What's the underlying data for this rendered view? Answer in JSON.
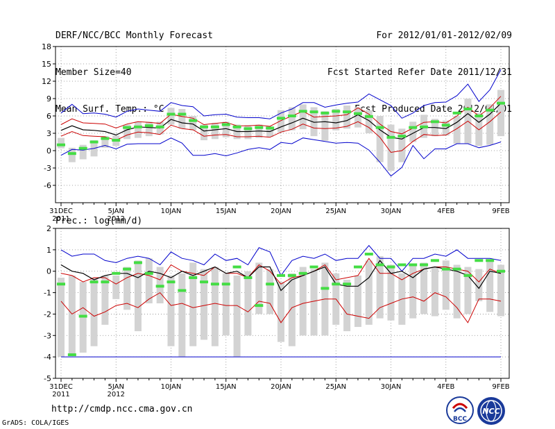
{
  "header": {
    "left": [
      "DERF/NCC/BCC Monthly Forecast",
      "Member Size=40",
      "Mean Surf. Temp.: °C"
    ],
    "right": [
      "For 2012/01/01-2012/02/09",
      "Fcst Started Refer Date 2011/12/31",
      "Fcst Produced Date 2012/01/01"
    ]
  },
  "footer": {
    "url": "http://cmdp.ncc.cma.gov.cn",
    "credit": "GrADS: COLA/IGES"
  },
  "logos": {
    "bcc": "BCC",
    "ncc": "NCC"
  },
  "colors": {
    "box": "#d3d3d3",
    "median": "#44dd44",
    "mean": "#000000",
    "envelope": "#cc0000",
    "extreme": "#0000cc"
  },
  "chart_data": [
    {
      "type": "line",
      "title": "Mean Surf. Temp.: °C",
      "ylim": [
        -9,
        18
      ],
      "yticks": [
        -6,
        -3,
        0,
        3,
        6,
        9,
        12,
        15,
        18
      ],
      "xticks": [
        {
          "day": 0,
          "l1": "31DEC",
          "l2": "2011"
        },
        {
          "day": 5,
          "l1": "5JAN",
          "l2": "2012"
        },
        {
          "day": 10,
          "l1": "10JAN",
          "l2": ""
        },
        {
          "day": 15,
          "l1": "15JAN",
          "l2": ""
        },
        {
          "day": 20,
          "l1": "20JAN",
          "l2": ""
        },
        {
          "day": 25,
          "l1": "25JAN",
          "l2": ""
        },
        {
          "day": 30,
          "l1": "30JAN",
          "l2": ""
        },
        {
          "day": 35,
          "l1": "4FEB",
          "l2": ""
        },
        {
          "day": 40,
          "l1": "9FEB",
          "l2": ""
        }
      ],
      "max": [
        6.5,
        8.0,
        6.4,
        6.5,
        6.3,
        5.8,
        6.8,
        7.2,
        7.0,
        6.8,
        8.3,
        7.8,
        7.6,
        6.0,
        6.2,
        6.3,
        5.8,
        5.7,
        5.7,
        5.5,
        6.5,
        7.2,
        8.3,
        8.3,
        7.5,
        7.9,
        8.2,
        8.4,
        9.8,
        8.8,
        7.8,
        5.6,
        6.5,
        7.8,
        8.3,
        8.4,
        9.5,
        11.5,
        8.5,
        10.5,
        14.0
      ],
      "upper": [
        4.5,
        5.5,
        4.8,
        4.7,
        4.6,
        3.9,
        4.6,
        5.0,
        4.9,
        4.7,
        6.3,
        5.9,
        5.6,
        4.5,
        4.7,
        4.9,
        4.3,
        4.3,
        4.4,
        4.2,
        5.2,
        6.0,
        6.8,
        5.8,
        5.9,
        6.0,
        6.2,
        7.4,
        6.3,
        4.6,
        3.3,
        2.9,
        3.9,
        4.9,
        5.0,
        4.8,
        6.0,
        7.5,
        6.0,
        7.4,
        9.4
      ],
      "mean": [
        3.5,
        4.3,
        3.6,
        3.5,
        3.3,
        2.7,
        3.6,
        4.1,
        4.0,
        3.9,
        5.4,
        4.8,
        4.6,
        3.4,
        3.6,
        3.8,
        3.3,
        3.3,
        3.4,
        3.3,
        4.1,
        4.8,
        5.6,
        4.9,
        5.0,
        4.8,
        5.2,
        6.2,
        5.2,
        3.6,
        2.3,
        2.0,
        3.0,
        4.0,
        4.0,
        3.8,
        4.9,
        6.4,
        4.9,
        6.3,
        8.2
      ],
      "lower": [
        2.5,
        3.3,
        2.6,
        2.5,
        2.4,
        1.8,
        2.7,
        3.2,
        3.1,
        2.8,
        4.4,
        3.8,
        3.6,
        2.5,
        2.7,
        2.8,
        2.4,
        2.4,
        2.5,
        2.3,
        3.2,
        3.7,
        4.6,
        3.9,
        3.8,
        3.9,
        4.2,
        5.0,
        4.0,
        2.3,
        -0.3,
        0.0,
        1.6,
        2.8,
        2.6,
        2.7,
        3.8,
        5.1,
        3.6,
        5.0,
        6.7
      ],
      "min": [
        -0.8,
        0.2,
        0.1,
        0.4,
        0.9,
        0.3,
        1.1,
        1.2,
        1.2,
        1.2,
        2.2,
        1.3,
        -0.8,
        -0.8,
        -0.5,
        -0.9,
        -0.4,
        0.2,
        0.5,
        0.2,
        1.4,
        1.2,
        2.2,
        1.9,
        1.6,
        1.3,
        1.4,
        1.3,
        0.1,
        -2.0,
        -4.4,
        -2.9,
        0.9,
        -1.4,
        0.3,
        0.3,
        1.2,
        1.2,
        0.5,
        0.9,
        1.5
      ],
      "q1": [
        0.4,
        -2.0,
        -1.5,
        -1.0,
        0.5,
        0.8,
        2.0,
        2.2,
        2.5,
        2.8,
        4.5,
        3.8,
        3.5,
        1.8,
        2.0,
        2.3,
        2.0,
        2.0,
        2.2,
        2.4,
        3.2,
        3.5,
        3.7,
        2.5,
        1.7,
        3.5,
        3.8,
        4.0,
        3.0,
        -2.0,
        -3.5,
        -2.0,
        1.5,
        2.2,
        2.5,
        2.6,
        1.2,
        1.2,
        0.8,
        1.0,
        2.5
      ],
      "q3": [
        2.2,
        0.5,
        1.0,
        1.8,
        2.5,
        2.6,
        4.5,
        5.0,
        5.0,
        5.0,
        7.4,
        7.2,
        6.0,
        4.5,
        4.8,
        5.0,
        4.5,
        4.4,
        4.5,
        4.2,
        7.0,
        7.5,
        8.0,
        7.5,
        6.8,
        7.2,
        7.8,
        7.5,
        7.0,
        6.0,
        4.5,
        3.8,
        5.0,
        6.2,
        5.5,
        5.2,
        6.0,
        9.0,
        6.5,
        8.0,
        10.5
      ],
      "median": [
        1.0,
        -0.5,
        0.4,
        1.5,
        2.1,
        1.8,
        4.0,
        4.1,
        4.3,
        4.1,
        6.3,
        6.3,
        5.2,
        4.1,
        4.1,
        4.5,
        4.1,
        3.8,
        4.0,
        3.9,
        5.6,
        6.0,
        6.8,
        6.7,
        6.5,
        6.8,
        6.7,
        6.4,
        5.9,
        4.0,
        2.3,
        2.5,
        4.0,
        4.1,
        5.0,
        4.4,
        6.5,
        7.2,
        6.0,
        7.0,
        8.2
      ]
    },
    {
      "type": "line",
      "title": "Prec.: log(mm/d)",
      "ylim": [
        -5,
        2
      ],
      "yticks": [
        -5,
        -4,
        -3,
        -2,
        -1,
        0,
        1,
        2
      ],
      "xticks": [
        {
          "day": 0,
          "l1": "31DEC",
          "l2": "2011"
        },
        {
          "day": 5,
          "l1": "5JAN",
          "l2": "2012"
        },
        {
          "day": 10,
          "l1": "10JAN",
          "l2": ""
        },
        {
          "day": 15,
          "l1": "15JAN",
          "l2": ""
        },
        {
          "day": 20,
          "l1": "20JAN",
          "l2": ""
        },
        {
          "day": 25,
          "l1": "25JAN",
          "l2": ""
        },
        {
          "day": 30,
          "l1": "30JAN",
          "l2": ""
        },
        {
          "day": 35,
          "l1": "4FEB",
          "l2": ""
        },
        {
          "day": 40,
          "l1": "9FEB",
          "l2": ""
        }
      ],
      "max": [
        1.0,
        0.7,
        0.8,
        0.8,
        0.5,
        0.4,
        0.6,
        0.7,
        0.6,
        0.3,
        0.9,
        0.6,
        0.5,
        0.3,
        0.8,
        0.5,
        0.6,
        0.3,
        1.1,
        0.9,
        -0.2,
        0.5,
        0.7,
        0.6,
        0.8,
        0.5,
        0.6,
        0.6,
        1.2,
        0.6,
        0.6,
        0.0,
        0.6,
        0.6,
        0.8,
        0.7,
        1.0,
        0.6,
        0.6,
        0.6,
        0.5
      ],
      "upper": [
        -0.1,
        -0.2,
        -0.5,
        -0.3,
        -0.3,
        -0.6,
        -0.3,
        -0.1,
        -0.2,
        -0.4,
        0.3,
        0.0,
        -0.1,
        -0.2,
        0.2,
        -0.1,
        -0.1,
        -0.3,
        0.3,
        0.0,
        -0.6,
        -0.3,
        -0.2,
        0.0,
        0.3,
        -0.4,
        -0.3,
        -0.2,
        0.6,
        -0.1,
        -0.1,
        -0.4,
        -0.1,
        0.1,
        0.2,
        0.2,
        0.1,
        0.0,
        -0.5,
        0.1,
        -0.1
      ],
      "mean": [
        0.3,
        0.0,
        -0.1,
        -0.4,
        -0.2,
        -0.1,
        -0.1,
        -0.3,
        0.0,
        -0.1,
        -0.3,
        0.0,
        -0.2,
        0.0,
        0.2,
        -0.1,
        0.0,
        -0.3,
        0.2,
        0.2,
        -0.9,
        -0.4,
        -0.2,
        0.0,
        0.2,
        -0.6,
        -0.7,
        -0.7,
        -0.3,
        0.5,
        -0.1,
        0.0,
        -0.3,
        0.1,
        0.2,
        0.1,
        0.0,
        -0.2,
        -0.8,
        0.0,
        -0.1
      ],
      "lower": [
        -1.4,
        -2.0,
        -1.7,
        -2.1,
        -1.9,
        -1.6,
        -1.5,
        -1.7,
        -1.3,
        -1.0,
        -1.6,
        -1.5,
        -1.7,
        -1.6,
        -1.5,
        -1.6,
        -1.6,
        -1.9,
        -1.4,
        -1.5,
        -2.4,
        -1.7,
        -1.5,
        -1.4,
        -1.3,
        -1.3,
        -2.0,
        -2.1,
        -2.2,
        -1.7,
        -1.5,
        -1.3,
        -1.2,
        -1.4,
        -1.0,
        -1.2,
        -1.7,
        -2.4,
        -1.3,
        -1.3,
        -1.4
      ],
      "min": [
        -4,
        -4,
        -4,
        -4,
        -4,
        -4,
        -4,
        -4,
        -4,
        -4,
        -4,
        -4,
        -4,
        -4,
        -4,
        -4,
        -4,
        -4,
        -4,
        -4,
        -4,
        -4,
        -4,
        -4,
        -4,
        -4,
        -4,
        -4,
        -4,
        -4,
        -4,
        -4,
        -4,
        -4,
        -4,
        -4,
        -4,
        -4,
        -4,
        -4,
        -4
      ],
      "q1": [
        -4.0,
        -3.9,
        -3.8,
        -3.5,
        -2.5,
        -1.3,
        -1.8,
        -2.8,
        -1.5,
        -1.5,
        -3.5,
        -4.0,
        -3.5,
        -3.2,
        -3.5,
        -3.0,
        -4.0,
        -3.0,
        -2.0,
        -2.0,
        -3.3,
        -3.5,
        -3.0,
        -3.0,
        -3.0,
        -2.5,
        -2.8,
        -2.6,
        -2.5,
        -2.2,
        -2.3,
        -2.5,
        -2.2,
        -2.0,
        -2.1,
        -1.8,
        -2.2,
        -2.0,
        -1.4,
        -1.9,
        -2.1
      ],
      "q3": [
        -0.3,
        -0.2,
        -0.5,
        -0.3,
        -0.2,
        -0.2,
        0.2,
        0.5,
        0.6,
        0.2,
        -0.2,
        -0.1,
        0.4,
        0.1,
        0.2,
        -0.1,
        -0.2,
        0.0,
        0.4,
        0.1,
        -0.5,
        -0.1,
        0.2,
        0.1,
        0.4,
        -0.1,
        -0.4,
        -0.2,
        0.5,
        0.7,
        0.3,
        -0.1,
        0.3,
        0.4,
        0.2,
        0.5,
        0.3,
        0.2,
        0.1,
        0.5,
        0.3
      ],
      "median": [
        -0.6,
        -3.9,
        -2.1,
        -0.5,
        -0.5,
        -0.1,
        0.1,
        0.4,
        -0.1,
        -0.7,
        -0.5,
        -0.9,
        -0.3,
        -0.5,
        -0.6,
        -0.6,
        0.2,
        -0.3,
        -1.6,
        -0.6,
        -0.2,
        -0.2,
        -0.1,
        0.2,
        -0.8,
        -0.6,
        -0.6,
        0.2,
        0.8,
        0.3,
        0.2,
        0.3,
        0.3,
        0.3,
        0.5,
        0.1,
        0.1,
        -0.2,
        0.5,
        0.5,
        0.0
      ]
    }
  ]
}
